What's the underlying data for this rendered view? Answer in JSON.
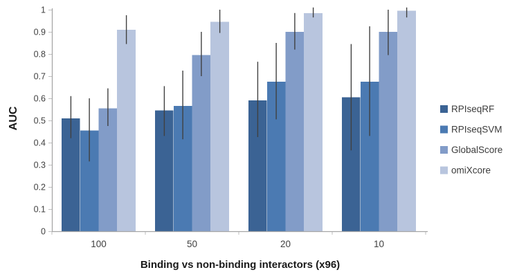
{
  "chart_data": {
    "type": "bar",
    "title": "",
    "xlabel": "Binding vs non-binding interactors (x96)",
    "ylabel": "AUC",
    "categories": [
      "100",
      "50",
      "20",
      "10"
    ],
    "series": [
      {
        "name": "RPIseqRF",
        "color": "#3B6394",
        "values": [
          0.51,
          0.545,
          0.59,
          0.605
        ],
        "error_low": [
          0.42,
          0.43,
          0.425,
          0.365
        ],
        "error_high": [
          0.61,
          0.655,
          0.765,
          0.845
        ]
      },
      {
        "name": "RPIseqSVM",
        "color": "#4B7AB2",
        "values": [
          0.455,
          0.565,
          0.675,
          0.675
        ],
        "error_low": [
          0.315,
          0.415,
          0.505,
          0.43
        ],
        "error_high": [
          0.6,
          0.725,
          0.85,
          0.925
        ]
      },
      {
        "name": "GlobalScore",
        "color": "#829CC8",
        "values": [
          0.555,
          0.795,
          0.9,
          0.9
        ],
        "error_low": [
          0.475,
          0.7,
          0.82,
          0.795
        ],
        "error_high": [
          0.645,
          0.9,
          0.985,
          1.0
        ]
      },
      {
        "name": "omiXcore",
        "color": "#B8C5DE",
        "values": [
          0.91,
          0.945,
          0.985,
          0.995
        ],
        "error_low": [
          0.845,
          0.895,
          0.965,
          0.965
        ],
        "error_high": [
          0.975,
          1.0,
          1.01,
          1.01
        ]
      }
    ],
    "ylim": [
      0,
      1
    ],
    "yticks": [
      {
        "value": 0,
        "label": "0"
      },
      {
        "value": 0.1,
        "label": "0.1"
      },
      {
        "value": 0.2,
        "label": "0.2"
      },
      {
        "value": 0.3,
        "label": "0.3"
      },
      {
        "value": 0.4,
        "label": "0.4"
      },
      {
        "value": 0.5,
        "label": "0.5"
      },
      {
        "value": 0.6,
        "label": "0.6"
      },
      {
        "value": 0.7,
        "label": "0.7"
      },
      {
        "value": 0.8,
        "label": "0.8"
      },
      {
        "value": 0.9,
        "label": "0.9"
      },
      {
        "value": 1,
        "label": "1"
      }
    ],
    "grid": false,
    "legend_position": "right",
    "colors": {
      "background": "#FFFFFF",
      "axis_line": "#A6A6A6",
      "tick_mark": "#BFBFBF",
      "tick_label": "#404040",
      "error_bar": "#404040",
      "axis_title_text": "#1A1A1A",
      "legend_text": "#3C3C3C"
    }
  }
}
